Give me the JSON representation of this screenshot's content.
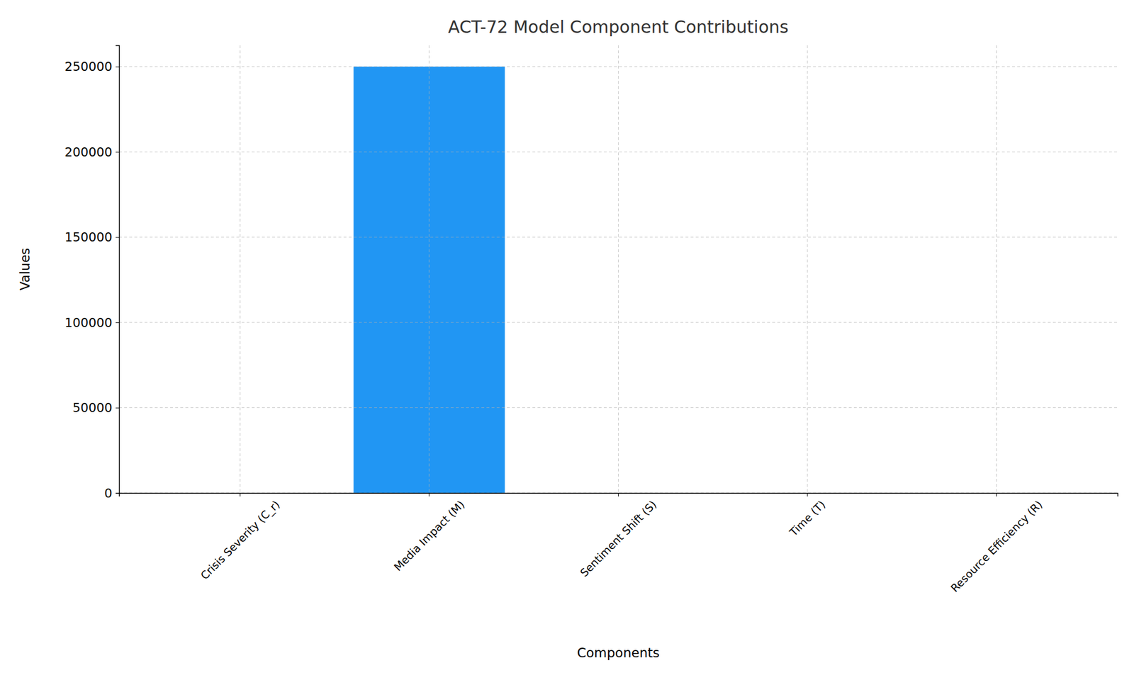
{
  "chart_data": {
    "type": "bar",
    "title": "ACT-72 Model Component Contributions",
    "x_label": "Components",
    "y_label": "Values",
    "categories": [
      "Crisis Severity (C_r)",
      "Media Impact (M)",
      "Sentiment Shift (S)",
      "Time (T)",
      "Resource Efficiency (R)"
    ],
    "values": [
      0,
      250000,
      0,
      0,
      0
    ],
    "color": "#2196f3",
    "ylim": [
      0,
      262500
    ],
    "yticks": [
      0,
      50000,
      100000,
      150000,
      200000,
      250000
    ],
    "grid": true
  }
}
